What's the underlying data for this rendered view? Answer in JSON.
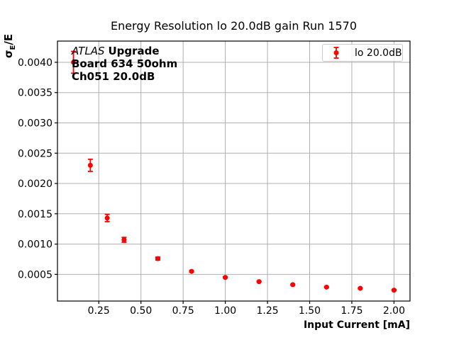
{
  "chart_data": {
    "type": "scatter",
    "title": "Energy Resolution lo 20.0dB gain Run 1570",
    "xlabel": "Input Current [mA]",
    "ylabel": "σE/E",
    "ylabel_parts": {
      "sigma": "σ",
      "sub": "E",
      "rest": "/E"
    },
    "series": [
      {
        "name": "lo 20.0dB",
        "color": "#ff0000",
        "marker": "circle",
        "x": [
          0.1,
          0.2,
          0.3,
          0.4,
          0.6,
          0.8,
          1.0,
          1.2,
          1.4,
          1.6,
          1.8,
          2.0
        ],
        "y": [
          0.004,
          0.0023,
          0.00143,
          0.00107,
          0.00076,
          0.00055,
          0.00045,
          0.00038,
          0.00033,
          0.00029,
          0.00027,
          0.00024
        ],
        "yerr": [
          0.00018,
          0.0001,
          6e-05,
          4e-05,
          2.5e-05,
          1.2e-05,
          1e-05,
          8e-06,
          8e-06,
          8e-06,
          8e-06,
          8e-06
        ]
      }
    ],
    "xlim": [
      0.005,
      2.095
    ],
    "ylim": [
      6e-05,
      0.00435
    ],
    "xticks": {
      "values": [
        0.25,
        0.5,
        0.75,
        1.0,
        1.25,
        1.5,
        1.75,
        2.0
      ],
      "labels": [
        "0.25",
        "0.50",
        "0.75",
        "1.00",
        "1.25",
        "1.50",
        "1.75",
        "2.00"
      ]
    },
    "yticks": {
      "values": [
        0.0005,
        0.001,
        0.0015,
        0.002,
        0.0025,
        0.003,
        0.0035,
        0.004
      ],
      "labels": [
        "0.0005",
        "0.0010",
        "0.0015",
        "0.0020",
        "0.0025",
        "0.0030",
        "0.0035",
        "0.0040"
      ]
    },
    "grid": true,
    "grid_color": "#b0b0b0",
    "spine_color": "#000000",
    "legend_position": "upper right",
    "annotation": {
      "experiment": "ATLAS",
      "program": "Upgrade",
      "line2": "Board 634 50ohm",
      "line3": "Ch051 20.0dB"
    }
  }
}
